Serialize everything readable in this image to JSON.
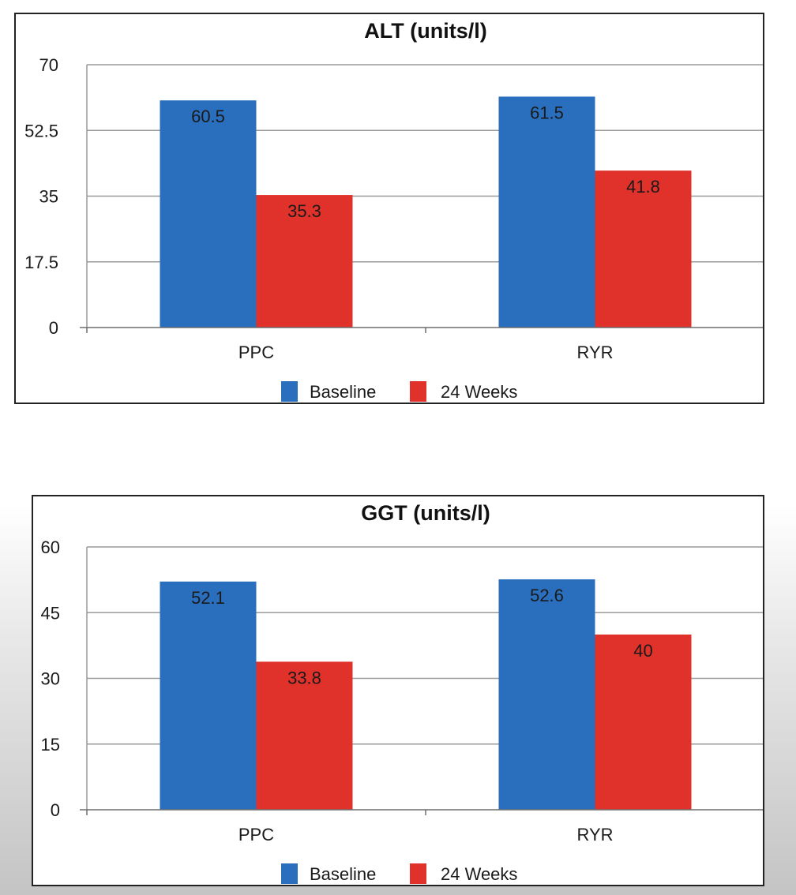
{
  "colors": {
    "baseline": "#2a6fbe",
    "weeks24": "#e0312b",
    "grid": "#9a9a9a",
    "axis": "#6e6e6e"
  },
  "chart_data": [
    {
      "type": "bar",
      "title": "ALT (units/l)",
      "categories": [
        "PPC",
        "RYR"
      ],
      "series": [
        {
          "name": "Baseline",
          "values": [
            60.5,
            61.5
          ],
          "labels": [
            "60.5",
            "61.5"
          ],
          "color": "#2a6fbe"
        },
        {
          "name": "24 Weeks",
          "values": [
            35.3,
            41.8
          ],
          "labels": [
            "35.3",
            "41.8"
          ],
          "color": "#e0312b"
        }
      ],
      "ylim": [
        0,
        70
      ],
      "yticks": [
        0,
        17.5,
        35,
        52.5,
        70
      ],
      "ytick_labels": [
        "0",
        "17.5",
        "35",
        "52.5",
        "70"
      ],
      "xlabel": "",
      "ylabel": "",
      "grid": true,
      "legend": "bottom"
    },
    {
      "type": "bar",
      "title": "GGT (units/l)",
      "categories": [
        "PPC",
        "RYR"
      ],
      "series": [
        {
          "name": "Baseline",
          "values": [
            52.1,
            52.6
          ],
          "labels": [
            "52.1",
            "52.6"
          ],
          "color": "#2a6fbe"
        },
        {
          "name": "24 Weeks",
          "values": [
            33.8,
            40
          ],
          "labels": [
            "33.8",
            "40"
          ],
          "color": "#e0312b"
        }
      ],
      "ylim": [
        0,
        60
      ],
      "yticks": [
        0,
        15,
        30,
        45,
        60
      ],
      "ytick_labels": [
        "0",
        "15",
        "30",
        "45",
        "60"
      ],
      "xlabel": "",
      "ylabel": "",
      "grid": true,
      "legend": "bottom"
    }
  ]
}
